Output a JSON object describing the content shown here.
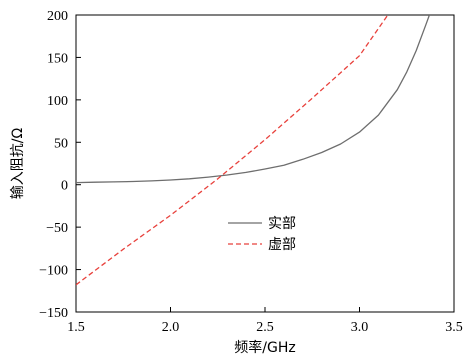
{
  "chart_data": {
    "type": "line",
    "title": "",
    "xlabel": "频率/GHz",
    "ylabel": "输入阻抗/Ω",
    "xlim": [
      1.5,
      3.5
    ],
    "ylim": [
      -150,
      200
    ],
    "xticks": [
      "1.5",
      "2.0",
      "2.5",
      "3.0",
      "3.5"
    ],
    "yticks": [
      "200",
      "150",
      "100",
      "50",
      "0",
      "−50",
      "−100",
      "−150"
    ],
    "xtick_values": [
      1.5,
      2.0,
      2.5,
      3.0,
      3.5
    ],
    "ytick_values": [
      200,
      150,
      100,
      50,
      0,
      -50,
      -100,
      -150
    ],
    "grid": false,
    "legend_position": "center",
    "series": [
      {
        "name": "实部",
        "color": "#6e6e6e",
        "style": "solid",
        "x": [
          1.5,
          1.6,
          1.7,
          1.8,
          1.9,
          2.0,
          2.1,
          2.2,
          2.3,
          2.4,
          2.5,
          2.6,
          2.7,
          2.8,
          2.9,
          3.0,
          3.1,
          3.2,
          3.25,
          3.3,
          3.35,
          3.37
        ],
        "y": [
          2.5,
          3,
          3.3,
          3.8,
          4.5,
          5.5,
          7,
          9,
          11.5,
          14.5,
          18.5,
          23,
          30,
          38,
          48,
          62,
          82,
          112,
          133,
          158,
          188,
          200
        ]
      },
      {
        "name": "虚部",
        "color": "#e8413c",
        "style": "dashed",
        "x": [
          1.5,
          1.75,
          2.0,
          2.25,
          2.5,
          2.75,
          3.0,
          3.15
        ],
        "y": [
          -118,
          -76,
          -36,
          7,
          53,
          102,
          152,
          200
        ]
      }
    ]
  }
}
